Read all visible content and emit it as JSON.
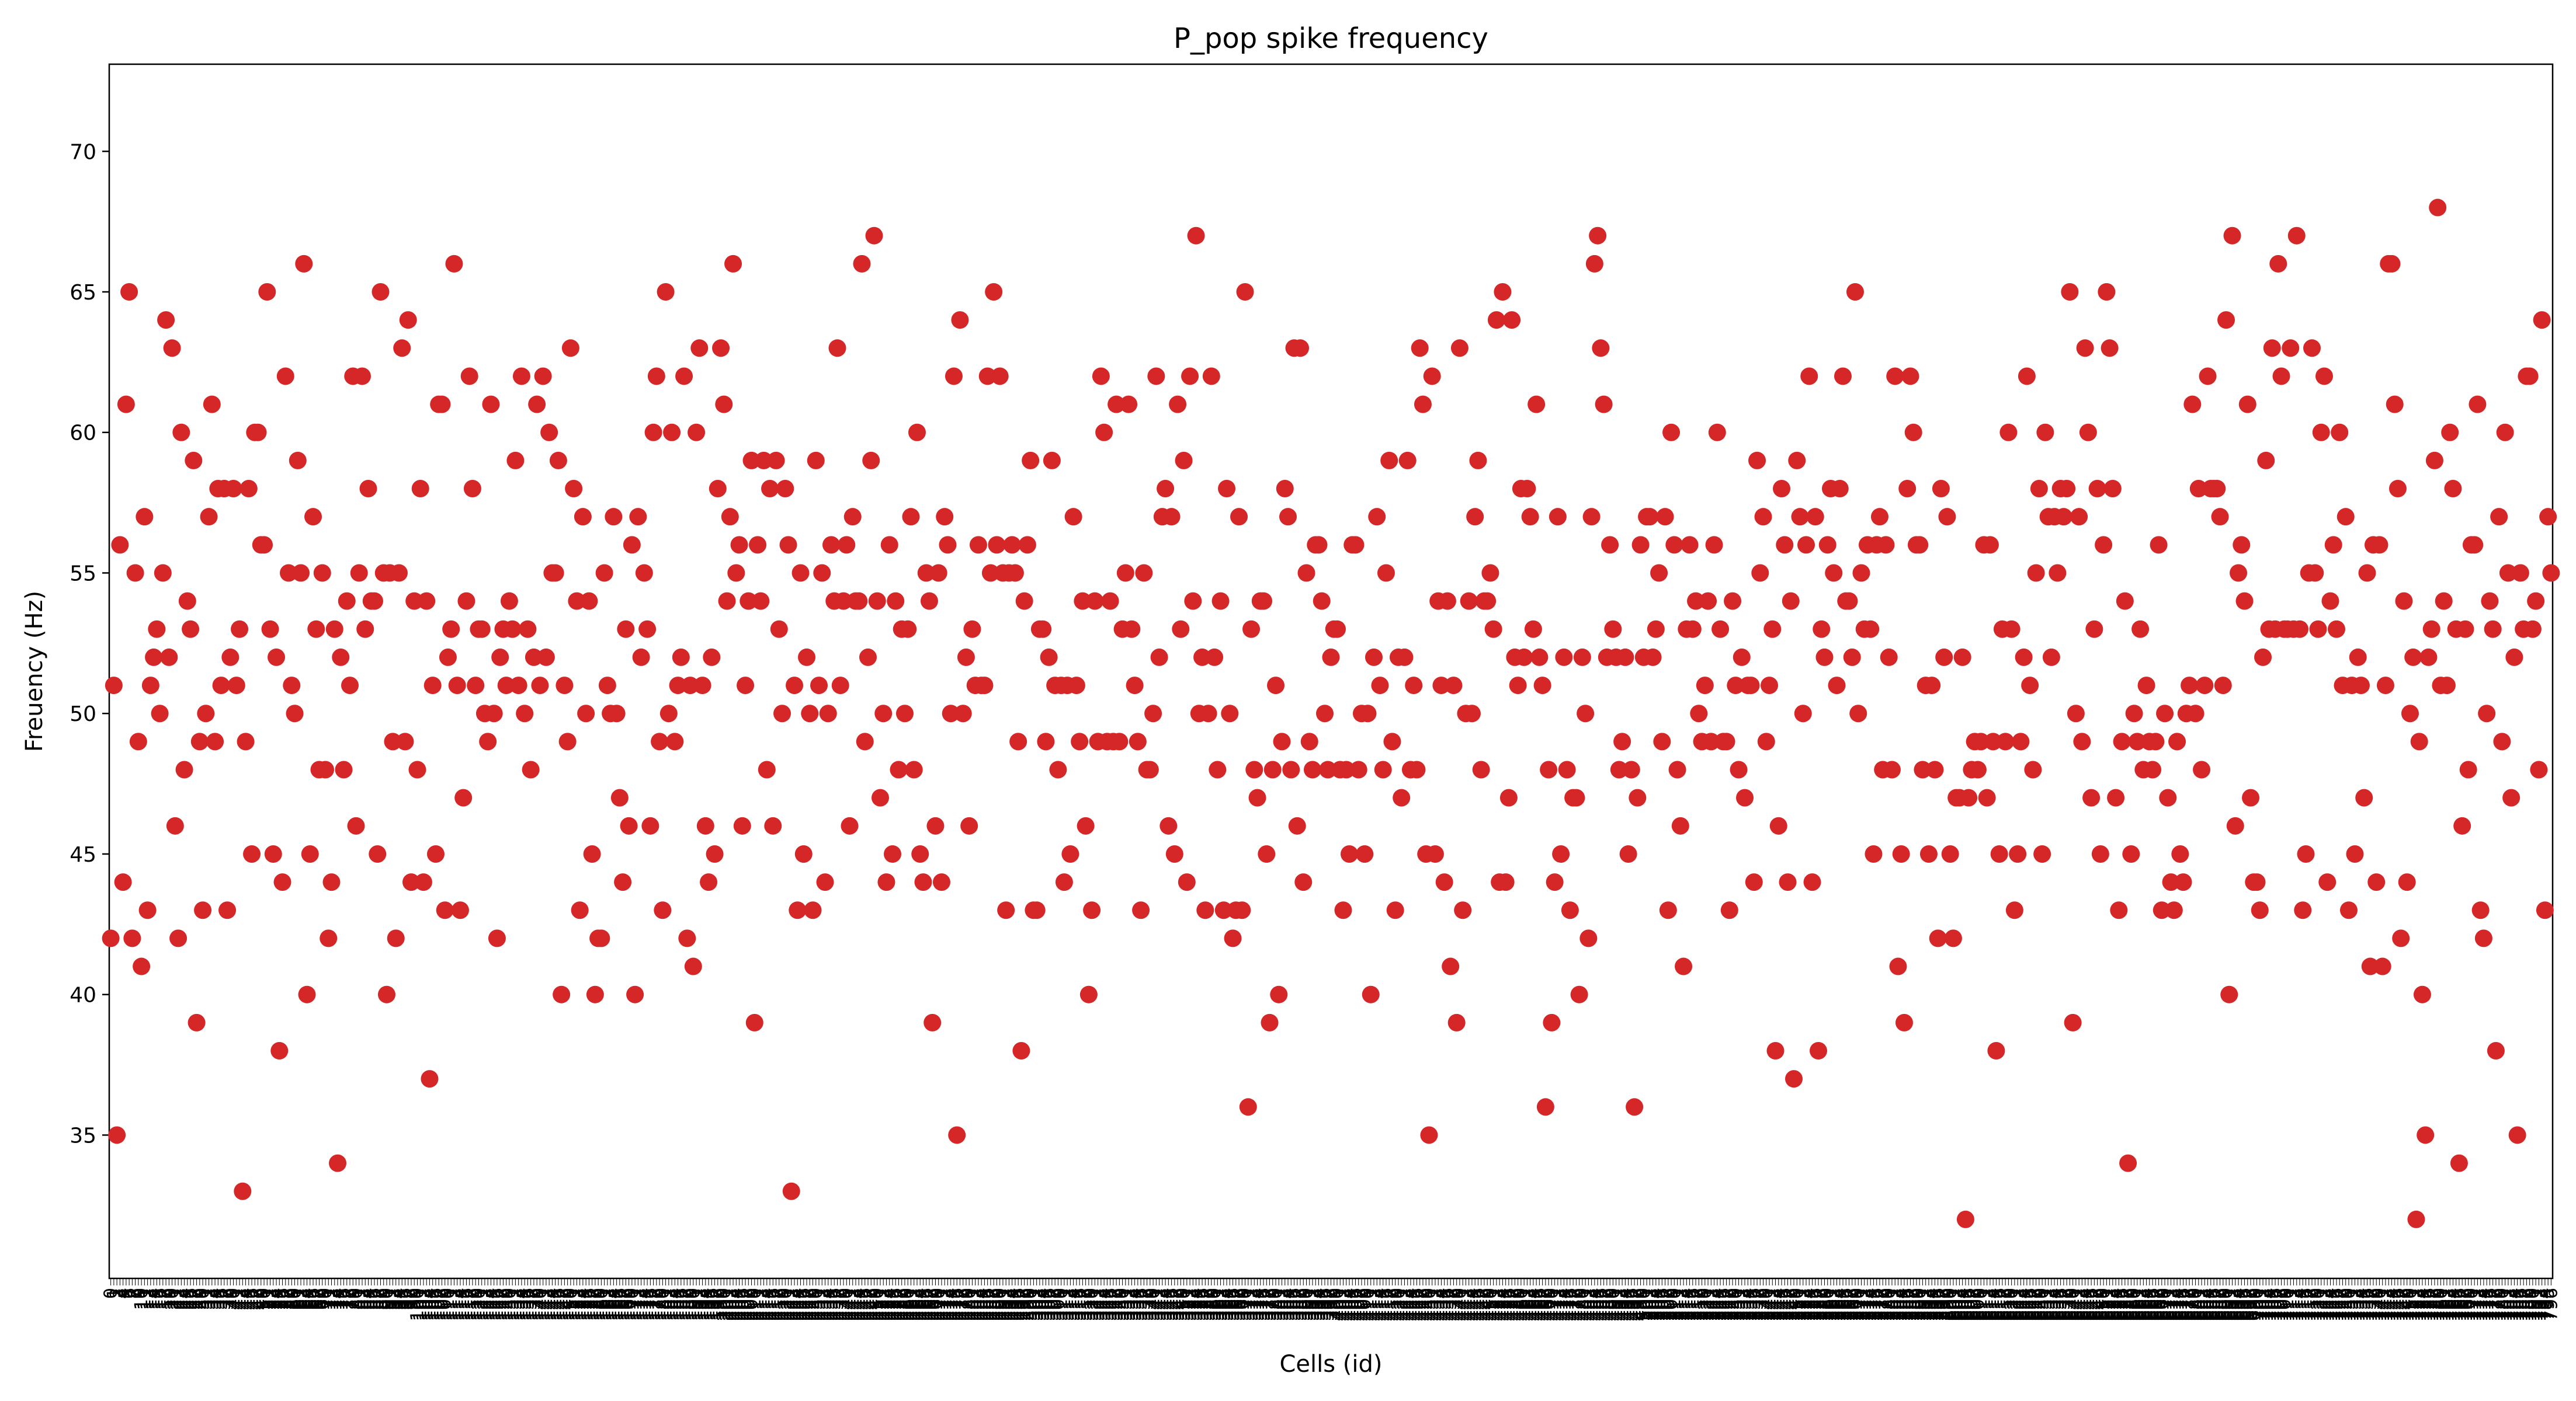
{
  "chart_data": {
    "type": "scatter",
    "title": "P_pop spike frequency",
    "xlabel": "Cells (id)",
    "ylabel": "Freuency (Hz)",
    "ylim": [
      29.9,
      73.1
    ],
    "yticks": [
      35,
      40,
      45,
      50,
      55,
      60,
      65,
      70
    ],
    "grid": false,
    "legend": "none",
    "marker_color": "#d62728",
    "x_start": 0,
    "values": [
      42,
      51,
      35,
      56,
      44,
      61,
      65,
      42,
      55,
      49,
      41,
      57,
      43,
      51,
      52,
      53,
      50,
      55,
      64,
      52,
      63,
      46,
      42,
      60,
      48,
      54,
      53,
      59,
      39,
      49,
      43,
      50,
      57,
      61,
      49,
      58,
      51,
      58,
      43,
      52,
      58,
      51,
      53,
      33,
      49,
      58,
      45,
      60,
      60,
      56,
      56,
      65,
      53,
      45,
      52,
      38,
      44,
      62,
      55,
      51,
      50,
      59,
      55,
      66,
      40,
      45,
      57,
      53,
      48,
      55,
      48,
      42,
      44,
      53,
      34,
      52,
      48,
      54,
      51,
      62,
      46,
      55,
      62,
      53,
      58,
      54,
      54,
      45,
      65,
      55,
      40,
      55,
      49,
      42,
      55,
      63,
      49,
      64,
      44,
      54,
      48,
      58,
      44,
      54,
      37,
      51,
      45,
      61,
      61,
      43,
      52,
      53,
      66,
      51,
      43,
      47,
      54,
      62,
      58,
      51,
      53,
      53,
      50,
      49,
      61,
      50,
      42,
      52,
      53,
      51,
      54,
      53,
      59,
      51,
      62,
      50,
      53,
      48,
      52,
      61,
      51,
      62,
      52,
      60,
      55,
      55,
      59,
      40,
      51,
      49,
      63,
      58,
      54,
      43,
      57,
      50,
      54,
      45,
      40,
      42,
      42,
      55,
      51,
      50,
      57,
      50,
      47,
      44,
      53,
      46,
      56,
      40,
      57,
      52,
      55,
      53,
      46,
      60,
      62,
      49,
      43,
      65,
      50,
      60,
      49,
      51,
      52,
      62,
      42,
      51,
      41,
      60,
      63,
      51,
      46,
      44,
      52,
      45,
      58,
      63,
      61,
      54,
      57,
      66,
      55,
      56,
      46,
      51,
      54,
      59,
      39,
      56,
      54,
      59,
      48,
      58,
      46,
      59,
      53,
      50,
      58,
      56,
      33,
      51,
      43,
      55,
      45,
      52,
      50,
      43,
      59,
      51,
      55,
      44,
      50,
      56,
      54,
      63,
      51,
      54,
      56,
      46,
      57,
      54,
      54,
      66,
      49,
      52,
      59,
      67,
      54,
      47,
      50,
      44,
      56,
      45,
      54,
      48,
      53,
      50,
      53,
      57,
      48,
      60,
      45,
      44,
      55,
      54,
      39,
      46,
      55,
      44,
      57,
      56,
      50,
      62,
      35,
      64,
      50,
      52,
      46,
      53,
      51,
      56,
      51,
      51,
      62,
      55,
      65,
      56,
      62,
      55,
      43,
      55,
      56,
      55,
      49,
      38,
      54,
      56,
      59,
      43,
      43,
      53,
      53,
      49,
      52,
      59,
      51,
      48,
      51,
      44,
      51,
      45,
      57,
      51,
      49,
      54,
      46,
      40,
      43,
      54,
      49,
      62,
      60,
      49,
      54,
      49,
      61,
      49,
      53,
      55,
      61,
      53,
      51,
      49,
      43,
      55,
      48,
      48,
      50,
      62,
      52,
      57,
      58,
      46,
      57,
      45,
      61,
      53,
      59,
      44,
      62,
      54,
      67,
      50,
      52,
      43,
      50,
      62,
      52,
      48,
      54,
      43,
      58,
      50,
      42,
      43,
      57,
      43,
      65,
      36,
      53,
      48,
      47,
      54,
      54,
      45,
      39,
      48,
      51,
      40,
      49,
      58,
      57,
      48,
      63,
      46,
      63,
      44,
      55,
      49,
      48,
      56,
      56,
      54,
      50,
      48,
      52,
      53,
      53,
      48,
      43,
      48,
      45,
      56,
      56,
      48,
      50,
      45,
      50,
      40,
      52,
      57,
      51,
      48,
      55,
      59,
      49,
      43,
      52,
      47,
      52,
      59,
      48,
      51,
      48,
      63,
      61,
      45,
      35,
      62,
      45,
      54,
      51,
      44,
      54,
      41,
      51,
      39,
      63,
      43,
      50,
      54,
      50,
      57,
      59,
      48,
      54,
      54,
      55,
      53,
      64,
      44,
      65,
      44,
      47,
      64,
      52,
      51,
      58,
      52,
      58,
      57,
      53,
      61,
      52,
      51,
      36,
      48,
      39,
      44,
      57,
      45,
      52,
      48,
      43,
      47,
      47,
      40,
      52,
      50,
      42,
      57,
      66,
      67,
      63,
      61,
      52,
      56,
      53,
      52,
      48,
      49,
      52,
      45,
      48,
      36,
      47,
      56,
      52,
      57,
      57,
      52,
      53,
      55,
      49,
      57,
      43,
      60,
      56,
      48,
      46,
      41,
      53,
      56,
      53,
      54,
      50,
      49,
      51,
      54,
      49,
      56,
      60,
      53,
      49,
      49,
      43,
      54,
      51,
      48,
      52,
      47,
      51,
      51,
      44,
      59,
      55,
      57,
      49,
      51,
      53,
      38,
      46,
      58,
      56,
      44,
      54,
      37,
      59,
      57,
      50,
      56,
      62,
      44,
      57,
      38,
      53,
      52,
      56,
      58,
      55,
      51,
      58,
      62,
      54,
      54,
      52,
      65,
      50,
      55,
      53,
      56,
      53,
      45,
      56,
      57,
      48,
      56,
      52,
      48,
      62,
      41,
      45,
      39,
      58,
      62,
      60,
      56,
      56,
      48,
      51,
      45,
      51,
      48,
      42,
      58,
      52,
      57,
      45,
      42,
      47,
      47,
      52,
      32,
      47,
      48,
      49,
      48,
      49,
      56,
      47,
      56,
      49,
      38,
      45,
      53,
      49,
      60,
      53,
      43,
      45,
      49,
      52,
      62,
      51,
      48,
      55,
      58,
      45,
      60,
      57,
      52,
      57,
      55,
      58,
      57,
      58,
      65,
      39,
      50,
      57,
      49,
      63,
      60,
      47,
      53,
      58,
      45,
      56,
      65,
      63,
      58,
      47,
      43,
      49,
      54,
      34,
      45,
      50,
      49,
      53,
      48,
      51,
      49,
      48,
      49,
      56,
      43,
      50,
      47,
      44,
      43,
      49,
      45,
      44,
      50,
      51,
      61,
      50,
      58,
      48,
      51,
      62,
      58,
      58,
      58,
      57,
      51,
      64,
      40,
      67,
      46,
      55,
      56,
      54,
      61,
      47,
      44,
      44,
      43,
      52,
      59,
      53,
      63,
      53,
      66,
      62,
      53,
      53,
      63,
      53,
      67,
      53,
      43,
      45,
      55,
      63,
      55,
      53,
      60,
      62,
      44,
      54,
      56,
      53,
      60,
      51,
      57,
      43,
      51,
      45,
      52,
      51,
      47,
      55,
      41,
      56,
      44,
      56,
      41,
      51,
      66,
      66,
      61,
      58,
      42,
      54,
      44,
      50,
      52,
      32,
      49,
      40,
      35,
      52,
      53,
      59,
      68,
      51,
      54,
      51,
      60,
      58,
      53,
      34,
      46,
      53,
      48,
      56,
      56,
      61,
      43,
      42,
      50,
      54,
      53,
      38,
      57,
      49,
      60,
      55,
      47,
      52,
      35,
      55,
      53,
      62,
      62,
      53,
      54,
      48,
      64,
      43,
      57,
      55
    ]
  }
}
